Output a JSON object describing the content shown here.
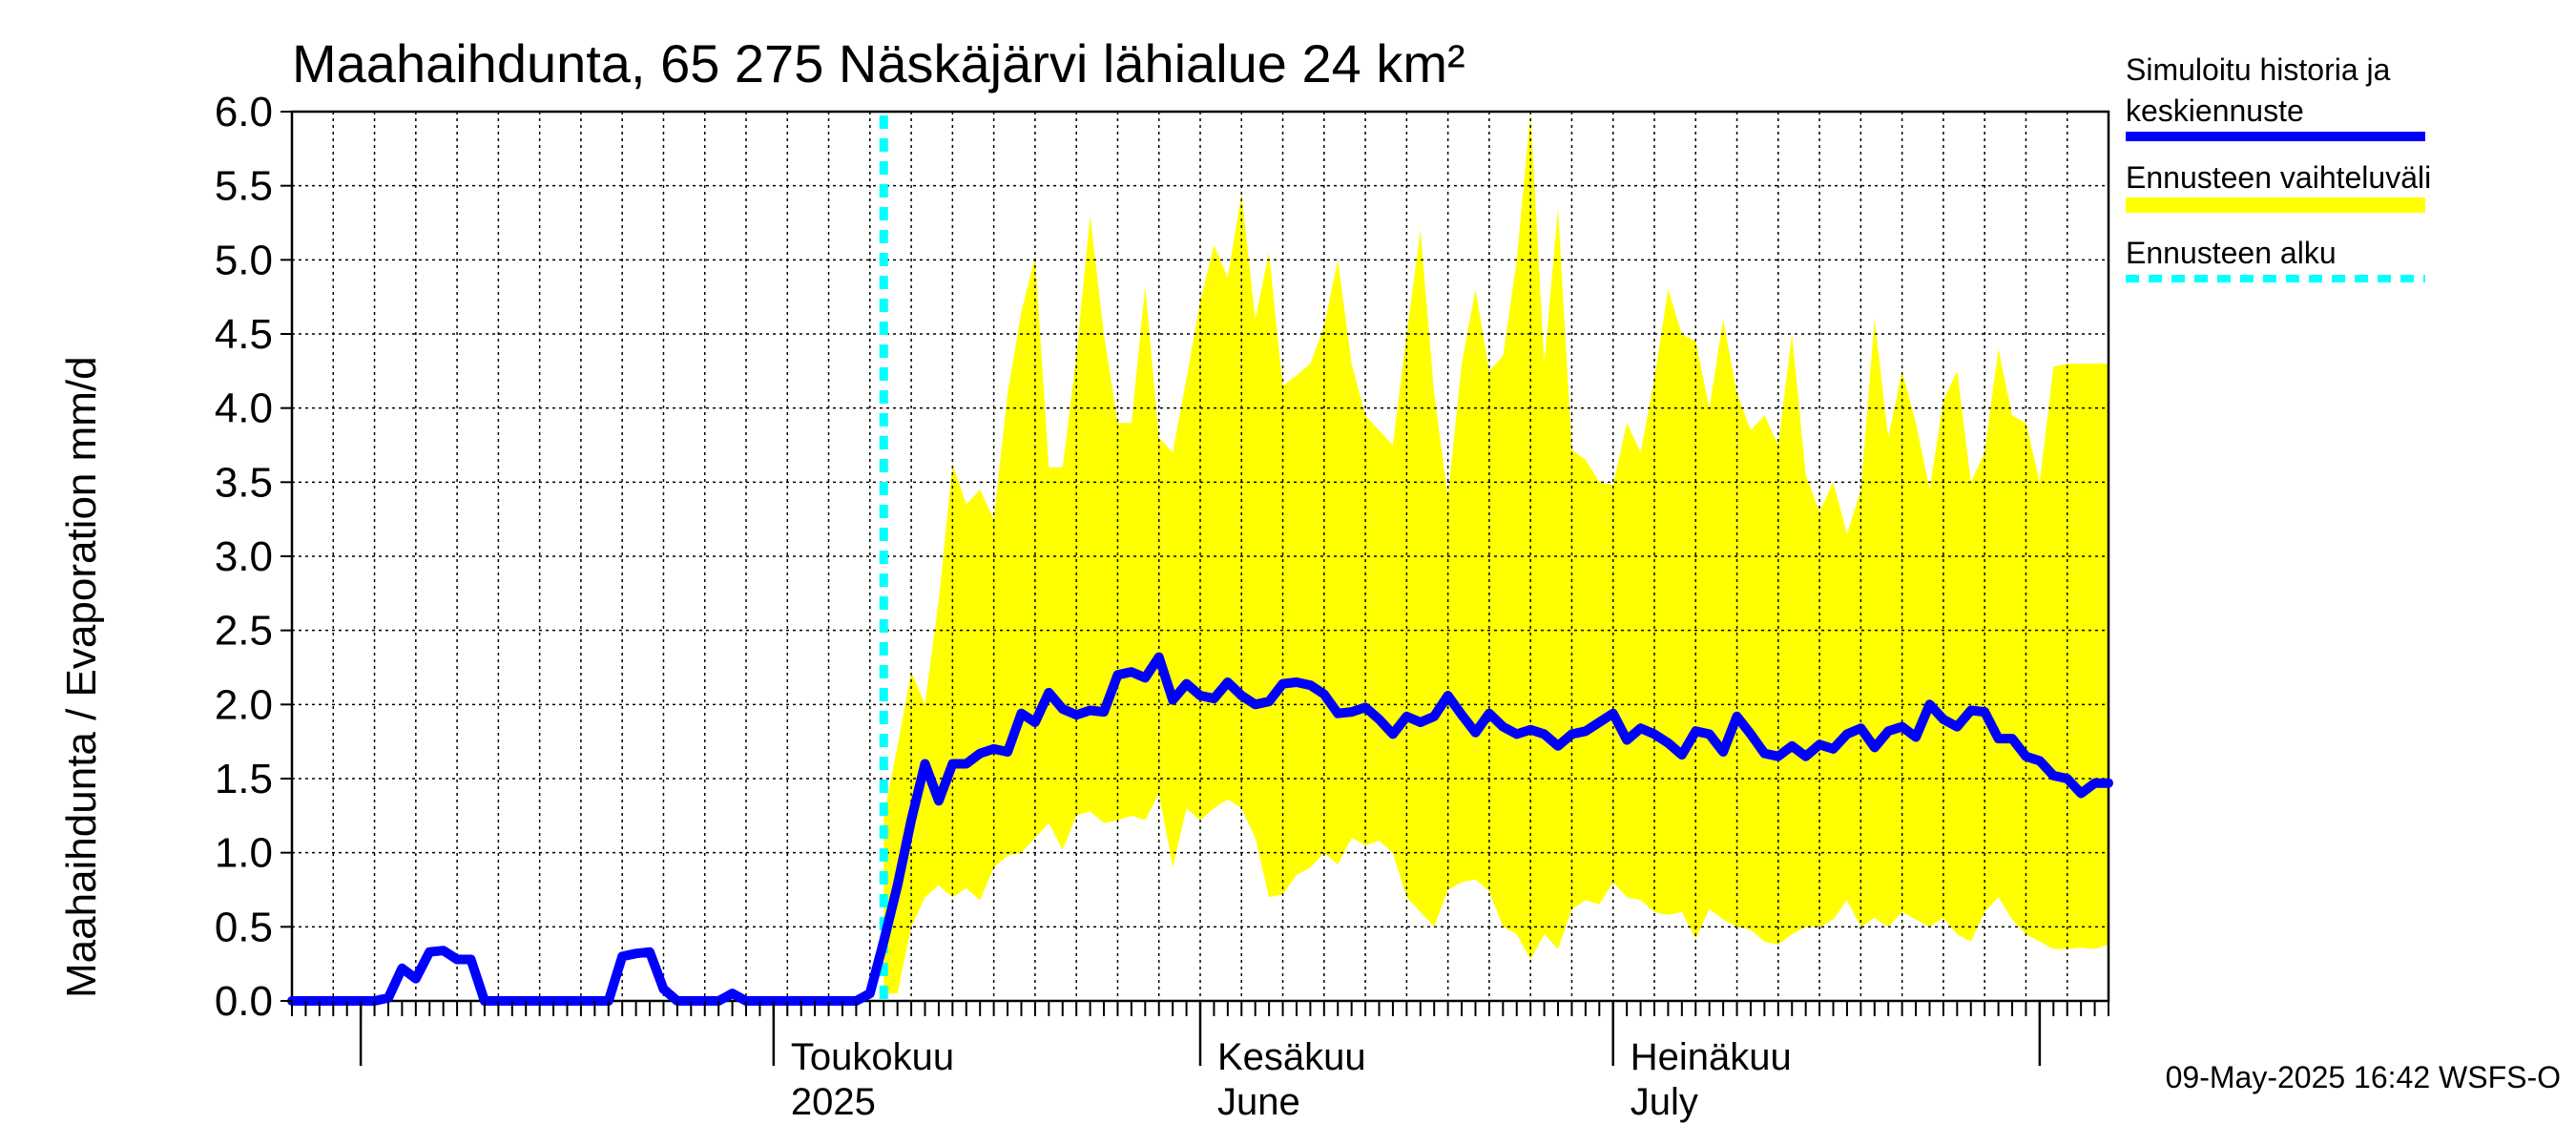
{
  "chart_data": {
    "type": "area",
    "title": "Maahaihdunta, 65 275 Näskäjärvi lähialue 24 km²",
    "ylabel": "Maahaihdunta / Evaporation   mm/d",
    "ylim": [
      0,
      6
    ],
    "yticks": [
      "0.0",
      "0.5",
      "1.0",
      "1.5",
      "2.0",
      "2.5",
      "3.0",
      "3.5",
      "4.0",
      "4.5",
      "5.0",
      "5.5",
      "6.0"
    ],
    "x_start": "2025-03-27",
    "forecast_start": "2025-05-09",
    "month_labels": [
      {
        "date": "2025-05-01",
        "line1": "Toukokuu",
        "line2": "2025"
      },
      {
        "date": "2025-06-01",
        "line1": "Kesäkuu",
        "line2": "June"
      },
      {
        "date": "2025-07-01",
        "line1": "Heinäkuu",
        "line2": "July"
      }
    ],
    "month_boundaries": [
      "2025-04-01",
      "2025-05-01",
      "2025-06-01",
      "2025-07-01",
      "2025-08-01"
    ],
    "history_dates": [
      "2025-03-27",
      "2025-03-28",
      "2025-03-29",
      "2025-03-30",
      "2025-03-31",
      "2025-04-01",
      "2025-04-02",
      "2025-04-03",
      "2025-04-04",
      "2025-04-05",
      "2025-04-06",
      "2025-04-07",
      "2025-04-08",
      "2025-04-09",
      "2025-04-10",
      "2025-04-11",
      "2025-04-12",
      "2025-04-13",
      "2025-04-14",
      "2025-04-15",
      "2025-04-16",
      "2025-04-17",
      "2025-04-18",
      "2025-04-19",
      "2025-04-20",
      "2025-04-21",
      "2025-04-22",
      "2025-04-23",
      "2025-04-24",
      "2025-04-25",
      "2025-04-26",
      "2025-04-27",
      "2025-04-28",
      "2025-04-29",
      "2025-04-30",
      "2025-05-01",
      "2025-05-02",
      "2025-05-03",
      "2025-05-04",
      "2025-05-05",
      "2025-05-06",
      "2025-05-07",
      "2025-05-08",
      "2025-05-09"
    ],
    "history_values": [
      0,
      0,
      0,
      0,
      0,
      0,
      0,
      0.02,
      0.22,
      0.15,
      0.33,
      0.34,
      0.28,
      0.28,
      0,
      0,
      0,
      0,
      0,
      0,
      0,
      0,
      0,
      0,
      0.3,
      0.32,
      0.33,
      0.08,
      0,
      0,
      0,
      0,
      0.05,
      0,
      0,
      0,
      0,
      0,
      0,
      0,
      0,
      0,
      0.05,
      0.4
    ],
    "series": [
      {
        "name": "Simuloitu historia ja keskiennuste",
        "color": "#0000ff",
        "values": [
          0.4,
          0.78,
          1.22,
          1.6,
          1.35,
          1.6,
          1.6,
          1.67,
          1.7,
          1.68,
          1.94,
          1.88,
          2.08,
          1.97,
          1.93,
          1.96,
          1.95,
          2.2,
          2.22,
          2.18,
          2.32,
          2.03,
          2.14,
          2.06,
          2.04,
          2.15,
          2.06,
          2.0,
          2.02,
          2.14,
          2.15,
          2.13,
          2.07,
          1.94,
          1.95,
          1.98,
          1.9,
          1.8,
          1.92,
          1.88,
          1.92,
          2.06,
          1.93,
          1.81,
          1.94,
          1.85,
          1.8,
          1.83,
          1.8,
          1.72,
          1.8,
          1.82,
          1.88,
          1.94,
          1.76,
          1.84,
          1.8,
          1.74,
          1.66,
          1.82,
          1.8,
          1.68,
          1.92,
          1.8,
          1.67,
          1.65,
          1.72,
          1.65,
          1.73,
          1.7,
          1.8,
          1.84,
          1.71,
          1.82,
          1.85,
          1.78,
          2.0,
          1.9,
          1.85,
          1.96,
          1.95,
          1.77,
          1.77,
          1.65,
          1.62,
          1.52,
          1.5,
          1.4,
          1.47,
          1.47
        ]
      },
      {
        "name": "Ennusteen vaihteluväli",
        "color": "#ffff00",
        "lower": [
          0.05,
          0.05,
          0.5,
          0.7,
          0.78,
          0.7,
          0.76,
          0.68,
          0.9,
          0.98,
          1.0,
          1.1,
          1.2,
          1.02,
          1.25,
          1.28,
          1.2,
          1.22,
          1.25,
          1.22,
          1.4,
          0.9,
          1.3,
          1.22,
          1.3,
          1.36,
          1.3,
          1.1,
          0.7,
          0.72,
          0.85,
          0.9,
          1.0,
          0.92,
          1.1,
          1.05,
          1.08,
          1.0,
          0.7,
          0.6,
          0.5,
          0.75,
          0.8,
          0.82,
          0.74,
          0.5,
          0.45,
          0.28,
          0.45,
          0.35,
          0.62,
          0.68,
          0.65,
          0.8,
          0.7,
          0.68,
          0.6,
          0.58,
          0.6,
          0.42,
          0.62,
          0.55,
          0.5,
          0.48,
          0.4,
          0.38,
          0.45,
          0.5,
          0.5,
          0.55,
          0.68,
          0.5,
          0.56,
          0.5,
          0.6,
          0.55,
          0.5,
          0.56,
          0.45,
          0.4,
          0.6,
          0.7,
          0.55,
          0.45,
          0.4,
          0.35,
          0.35,
          0.36,
          0.35,
          0.38
        ],
        "upper": [
          1.25,
          1.72,
          2.22,
          2.0,
          2.7,
          3.62,
          3.35,
          3.45,
          3.25,
          4.1,
          4.65,
          5.02,
          3.6,
          3.6,
          4.35,
          5.3,
          4.5,
          3.9,
          3.9,
          4.82,
          3.8,
          3.7,
          4.2,
          4.72,
          5.1,
          4.88,
          5.45,
          4.6,
          5.05,
          4.15,
          4.22,
          4.3,
          4.55,
          5.0,
          4.3,
          3.95,
          3.85,
          3.75,
          4.5,
          5.2,
          4.1,
          3.4,
          4.3,
          4.8,
          4.25,
          4.35,
          5.0,
          6.0,
          4.3,
          5.35,
          3.72,
          3.65,
          3.5,
          3.48,
          3.9,
          3.7,
          4.2,
          4.8,
          4.5,
          4.45,
          4.0,
          4.6,
          4.1,
          3.85,
          3.95,
          3.75,
          4.5,
          3.55,
          3.3,
          3.5,
          3.15,
          3.45,
          4.6,
          3.8,
          4.25,
          3.9,
          3.45,
          4.05,
          4.25,
          3.5,
          3.7,
          4.4,
          3.95,
          3.9,
          3.5,
          4.28,
          4.3,
          4.3,
          4.3,
          4.3
        ]
      },
      {
        "name": "Ennusteen alku",
        "color": "#00ffff"
      }
    ],
    "legend_lines": [
      {
        "text": "Simuloitu historia ja",
        "group": 0
      },
      {
        "text": "keskiennuste",
        "group": 0
      },
      {
        "text": "Ennusteen vaihteluväli",
        "group": 1
      },
      {
        "text": "Ennusteen alku",
        "group": 2
      }
    ],
    "legend_position": "right",
    "grid": true
  },
  "footer": "09-May-2025 16:42 WSFS-O"
}
